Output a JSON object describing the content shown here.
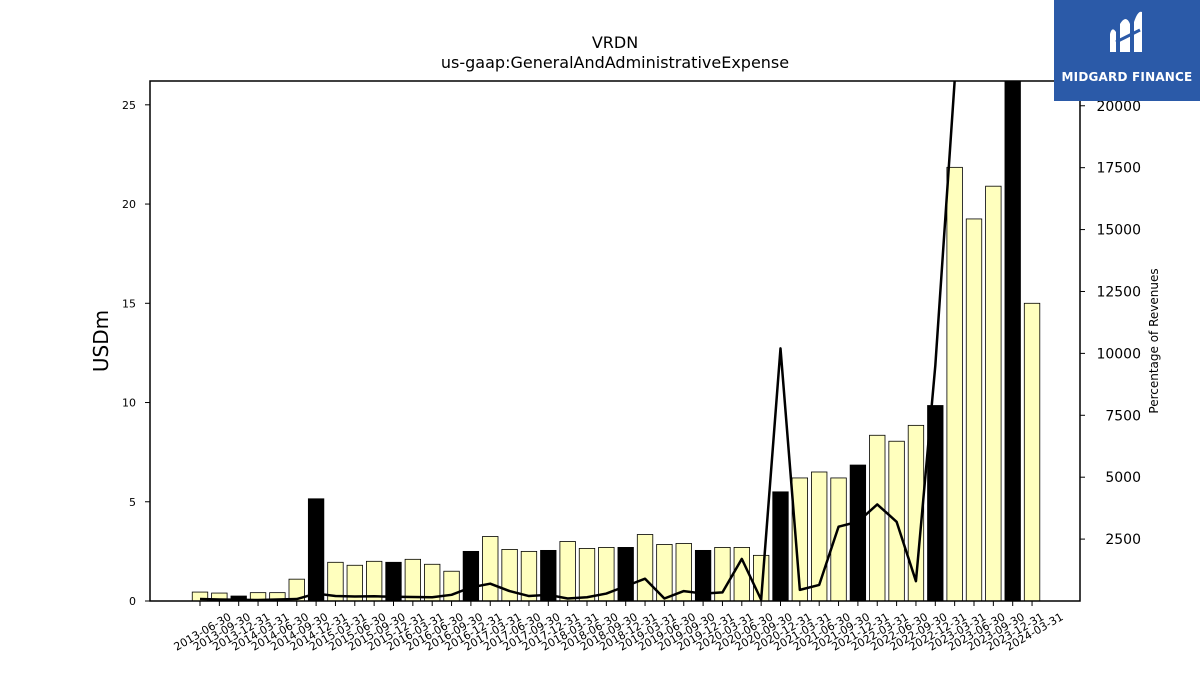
{
  "chart_data": {
    "type": "bar",
    "title": "VRDN",
    "subtitle": "us-gaap:GeneralAndAdministrativeExpense",
    "ylabel": "USDm",
    "y2label": "Percentage of Revenues",
    "ylim": [
      0,
      26.2
    ],
    "y2lim": [
      0,
      21000
    ],
    "yticks": [
      0,
      5,
      10,
      15,
      20,
      25
    ],
    "y2ticks": [
      2500,
      5000,
      7500,
      10000,
      12500,
      15000,
      17500,
      20000
    ],
    "categories": [
      "2013-06-30",
      "2013-09-30",
      "2013-12-31",
      "2014-03-31",
      "2014-06-30",
      "2014-09-30",
      "2014-12-31",
      "2015-03-31",
      "2015-06-30",
      "2015-09-30",
      "2015-12-31",
      "2016-03-31",
      "2016-06-30",
      "2016-09-30",
      "2016-12-31",
      "2017-03-31",
      "2017-06-30",
      "2017-09-30",
      "2017-12-31",
      "2018-03-31",
      "2018-06-30",
      "2018-09-30",
      "2018-12-31",
      "2019-03-31",
      "2019-06-30",
      "2019-09-30",
      "2019-12-31",
      "2020-03-31",
      "2020-06-30",
      "2020-09-30",
      "2020-12-31",
      "2021-03-31",
      "2021-06-30",
      "2021-09-30",
      "2021-12-31",
      "2022-03-31",
      "2022-06-30",
      "2022-09-30",
      "2022-12-31",
      "2023-03-31",
      "2023-06-30",
      "2023-09-30",
      "2023-12-31",
      "2024-03-31"
    ],
    "series": [
      {
        "type": "bar",
        "values": [
          0.45,
          0.4,
          0.25,
          0.42,
          0.42,
          1.1,
          5.15,
          1.95,
          1.8,
          2.0,
          1.95,
          2.1,
          1.85,
          1.5,
          2.5,
          3.25,
          2.6,
          2.5,
          2.55,
          3.0,
          2.65,
          2.7,
          2.7,
          3.35,
          2.85,
          2.9,
          2.55,
          2.7,
          2.7,
          2.3,
          5.5,
          6.2,
          6.5,
          6.2,
          6.85,
          8.35,
          8.05,
          8.85,
          9.85,
          21.85,
          19.25,
          20.9,
          26.5,
          15.0
        ],
        "annual": [
          false,
          false,
          true,
          false,
          false,
          false,
          true,
          false,
          false,
          false,
          true,
          false,
          false,
          false,
          true,
          false,
          false,
          false,
          true,
          false,
          false,
          false,
          true,
          false,
          false,
          false,
          true,
          false,
          false,
          false,
          true,
          false,
          false,
          false,
          true,
          false,
          false,
          false,
          true,
          false,
          false,
          false,
          true,
          false
        ]
      },
      {
        "type": "line",
        "axis": "right",
        "values": [
          80,
          60,
          50,
          40,
          60,
          80,
          300,
          200,
          180,
          190,
          170,
          160,
          150,
          250,
          550,
          700,
          400,
          200,
          250,
          100,
          150,
          300,
          600,
          900,
          100,
          400,
          300,
          350,
          1700,
          50,
          10200,
          450,
          650,
          3000,
          3200,
          3900,
          3200,
          800,
          9500,
          21000,
          null,
          null,
          null,
          null
        ]
      }
    ],
    "colors": {
      "bar": "#ffffbe",
      "bar_annual": "#000000",
      "line": "#000000"
    }
  },
  "logo": {
    "text": "MIDGARD FINANCE",
    "bg": "#2b5aa8"
  }
}
